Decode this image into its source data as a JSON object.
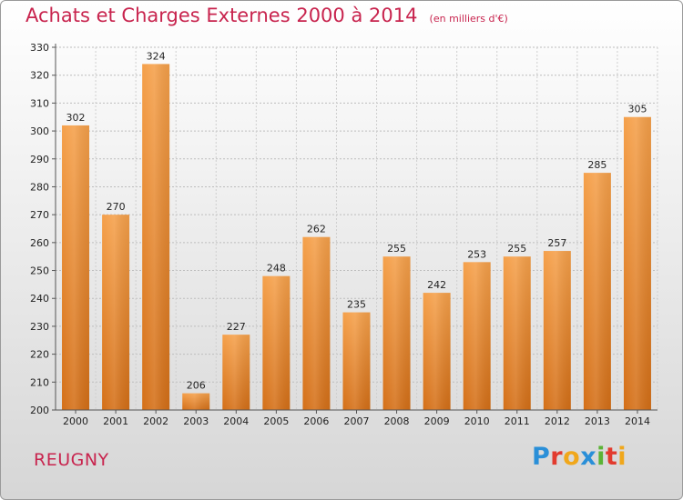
{
  "chart_data": {
    "type": "bar",
    "title": "Achats et Charges Externes 2000 à 2014",
    "subtitle": "(en milliers d'€)",
    "categories": [
      "2000",
      "2001",
      "2002",
      "2003",
      "2004",
      "2005",
      "2006",
      "2007",
      "2008",
      "2009",
      "2010",
      "2011",
      "2012",
      "2013",
      "2014"
    ],
    "values": [
      302,
      270,
      324,
      206,
      227,
      248,
      262,
      235,
      255,
      242,
      253,
      255,
      257,
      285,
      305
    ],
    "ylim": [
      200,
      330
    ],
    "yticks": [
      200,
      210,
      220,
      230,
      240,
      250,
      260,
      270,
      280,
      290,
      300,
      310,
      320,
      330
    ],
    "xlabel": "",
    "ylabel": "",
    "grid": true,
    "bar_color": "#f09a3a",
    "bar_color_dark": "#d9761c"
  },
  "commune": "REUGNY",
  "logo": {
    "text": "Proxiti",
    "letters": [
      "P",
      "r",
      "o",
      "x",
      "i",
      "t",
      "i"
    ]
  }
}
